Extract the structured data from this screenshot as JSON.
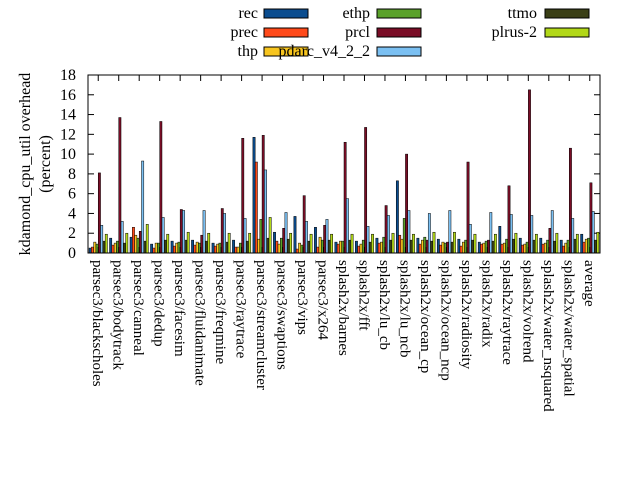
{
  "chart_data": {
    "type": "bar",
    "ylabel": "kdamond_cpu_util overhead\n(percent)",
    "ylim": [
      0,
      18
    ],
    "yticks": [
      0,
      2,
      4,
      6,
      8,
      10,
      12,
      14,
      16,
      18
    ],
    "grid": false,
    "legend_position": "top",
    "categories": [
      "parsec3/blackscholes",
      "parsec3/bodytrack",
      "parsec3/canneal",
      "parsec3/dedup",
      "parsec3/facesim",
      "parsec3/fluidanimate",
      "parsec3/freqmine",
      "parsec3/raytrace",
      "parsec3/streamcluster",
      "parsec3/swaptions",
      "parsec3/vips",
      "parsec3/x264",
      "splash2x/barnes",
      "splash2x/fft",
      "splash2x/lu_cb",
      "splash2x/lu_ncb",
      "splash2x/ocean_cp",
      "splash2x/ocean_ncp",
      "splash2x/radiosity",
      "splash2x/radix",
      "splash2x/raytrace",
      "splash2x/volrend",
      "splash2x/water_nsquared",
      "splash2x/water_spatial",
      "average"
    ],
    "series": [
      {
        "name": "rec",
        "color": "#0b4d8f",
        "values": [
          0.5,
          1.5,
          1.6,
          0.9,
          1.2,
          1.3,
          1.0,
          1.3,
          11.7,
          2.1,
          3.7,
          2.6,
          1.1,
          1.2,
          1.5,
          7.3,
          1.5,
          1.4,
          1.4,
          1.1,
          2.7,
          1.5,
          1.5,
          1.3,
          1.9
        ]
      },
      {
        "name": "prec",
        "color": "#ff4a1a",
        "values": [
          0.6,
          0.8,
          2.6,
          0.5,
          0.7,
          0.8,
          0.7,
          0.6,
          9.2,
          1.2,
          0.4,
          0.6,
          0.9,
          0.7,
          1.0,
          1.8,
          0.9,
          0.8,
          0.7,
          0.9,
          0.9,
          0.8,
          0.9,
          0.7,
          1.1
        ]
      },
      {
        "name": "thp",
        "color": "#f7c51f",
        "values": [
          1.1,
          1.0,
          1.8,
          1.0,
          1.0,
          1.1,
          0.9,
          0.6,
          1.4,
          0.9,
          1.0,
          1.6,
          1.2,
          0.9,
          1.1,
          1.4,
          1.3,
          1.1,
          1.1,
          1.0,
          1.0,
          0.9,
          1.0,
          1.0,
          1.4
        ]
      },
      {
        "name": "ethp",
        "color": "#5aa12a",
        "values": [
          0.9,
          1.2,
          1.5,
          1.0,
          1.1,
          1.0,
          1.0,
          1.0,
          3.4,
          1.5,
          0.8,
          1.3,
          1.2,
          1.3,
          1.6,
          3.5,
          1.6,
          1.0,
          1.3,
          1.2,
          1.4,
          1.1,
          1.3,
          1.3,
          1.5
        ]
      },
      {
        "name": "prcl",
        "color": "#7a0d26",
        "values": [
          8.1,
          13.7,
          2.2,
          13.3,
          4.4,
          1.8,
          4.5,
          11.6,
          11.9,
          2.5,
          5.8,
          2.8,
          11.2,
          12.7,
          4.8,
          10.0,
          1.3,
          1.1,
          9.2,
          1.3,
          6.8,
          16.5,
          2.5,
          10.6,
          7.1
        ]
      },
      {
        "name": "pdarc_v4_2_2",
        "color": "#7bc0f2",
        "values": [
          2.8,
          3.2,
          9.3,
          3.6,
          4.3,
          4.3,
          4.0,
          3.5,
          8.4,
          4.1,
          3.2,
          3.4,
          5.5,
          2.7,
          3.8,
          4.3,
          4.0,
          4.3,
          2.9,
          4.1,
          3.9,
          3.8,
          4.3,
          3.5,
          4.2
        ]
      },
      {
        "name": "ttmo",
        "color": "#3a3f16",
        "values": [
          1.2,
          1.0,
          1.2,
          1.3,
          1.3,
          1.2,
          1.1,
          1.2,
          1.5,
          1.4,
          1.2,
          1.3,
          1.3,
          1.1,
          1.3,
          1.3,
          1.2,
          1.1,
          1.3,
          1.2,
          1.4,
          1.3,
          1.2,
          1.4,
          1.3
        ]
      },
      {
        "name": "plrus-2",
        "color": "#b2d818",
        "values": [
          1.9,
          2.0,
          2.9,
          1.9,
          2.1,
          2.0,
          2.0,
          2.0,
          3.6,
          2.0,
          1.9,
          1.9,
          1.9,
          1.9,
          2.0,
          1.9,
          2.1,
          2.1,
          1.9,
          1.9,
          2.0,
          1.9,
          2.0,
          1.9,
          2.1
        ]
      }
    ]
  }
}
